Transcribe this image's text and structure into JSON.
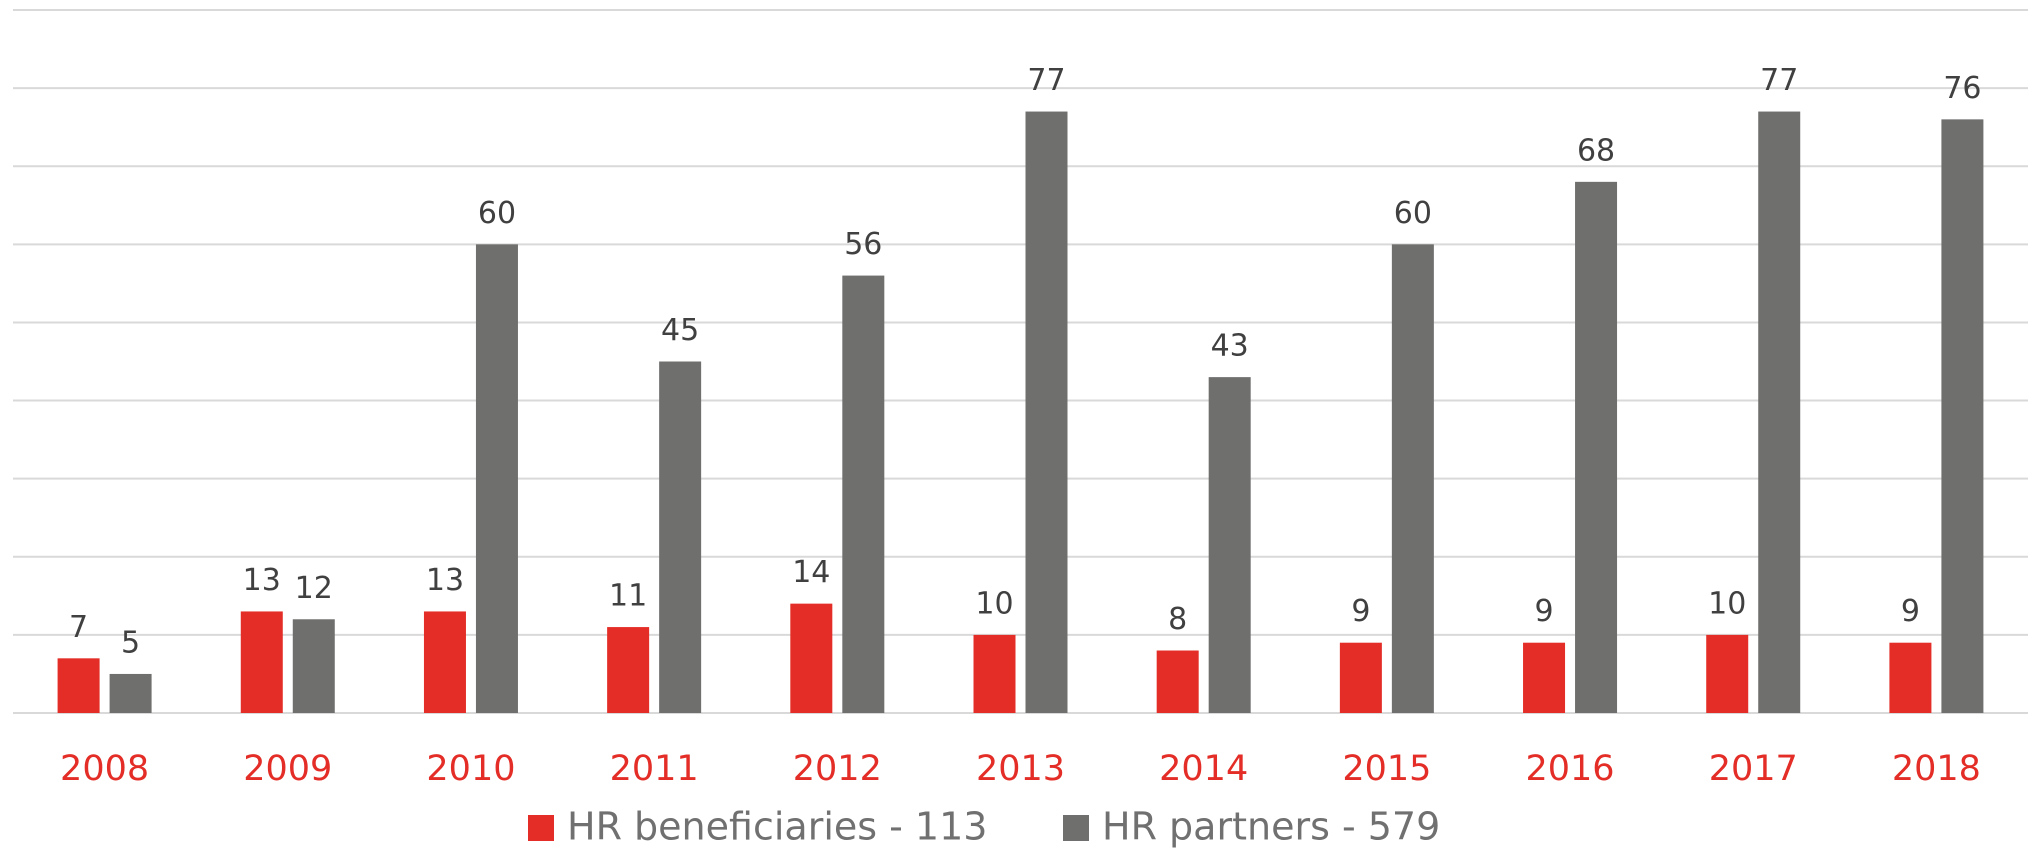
{
  "chart_data": {
    "type": "bar",
    "categories": [
      "2008",
      "2009",
      "2010",
      "2011",
      "2012",
      "2013",
      "2014",
      "2015",
      "2016",
      "2017",
      "2018"
    ],
    "series": [
      {
        "name": "HR beneficiaries - 113",
        "color": "#e32d26",
        "values": [
          7,
          13,
          13,
          11,
          14,
          10,
          8,
          9,
          9,
          10,
          9
        ]
      },
      {
        "name": "HR partners - 579",
        "color": "#6f6f6e",
        "values": [
          5,
          12,
          60,
          45,
          56,
          77,
          43,
          60,
          68,
          77,
          76
        ]
      }
    ],
    "ylim": [
      0,
      90
    ],
    "yticks": [
      0,
      10,
      20,
      30,
      40,
      50,
      60,
      70,
      80,
      90
    ],
    "grid": true,
    "legend": "bottom"
  }
}
